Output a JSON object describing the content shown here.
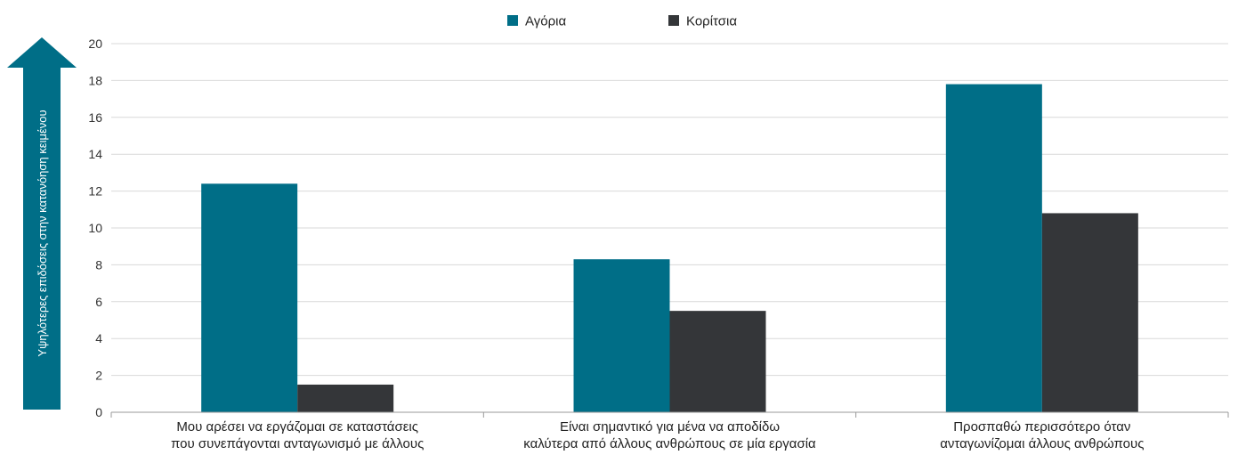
{
  "chart_data": {
    "type": "bar",
    "categories": [
      [
        "Μου αρέσει να εργάζομαι σε καταστάσεις",
        "που συνεπάγονται ανταγωνισμό με άλλους"
      ],
      [
        "Είναι σημαντικό για μένα να αποδίδω",
        "καλύτερα από άλλους ανθρώπους σε μία εργασία"
      ],
      [
        "Προσπαθώ περισσότερο όταν",
        "ανταγωνίζομαι άλλους ανθρώπους"
      ]
    ],
    "series": [
      {
        "name": "Αγόρια",
        "color": "#006e87",
        "values": [
          12.4,
          8.3,
          17.8
        ]
      },
      {
        "name": "Κορίτσια",
        "color": "#343639",
        "values": [
          1.5,
          5.5,
          10.8
        ]
      }
    ],
    "ylim": [
      0,
      20
    ],
    "yticks": [
      "0",
      "2",
      "4",
      "6",
      "8",
      "10",
      "12",
      "14",
      "16",
      "18",
      "20"
    ],
    "ylabel": "Υψηλότερες επιδόσεις στην κατανόηση κειμένου",
    "grid": true,
    "legend_position": "top-center",
    "arrow_color": "#006e87",
    "grid_color": "#d9d9d9",
    "axis_color": "#999999"
  }
}
